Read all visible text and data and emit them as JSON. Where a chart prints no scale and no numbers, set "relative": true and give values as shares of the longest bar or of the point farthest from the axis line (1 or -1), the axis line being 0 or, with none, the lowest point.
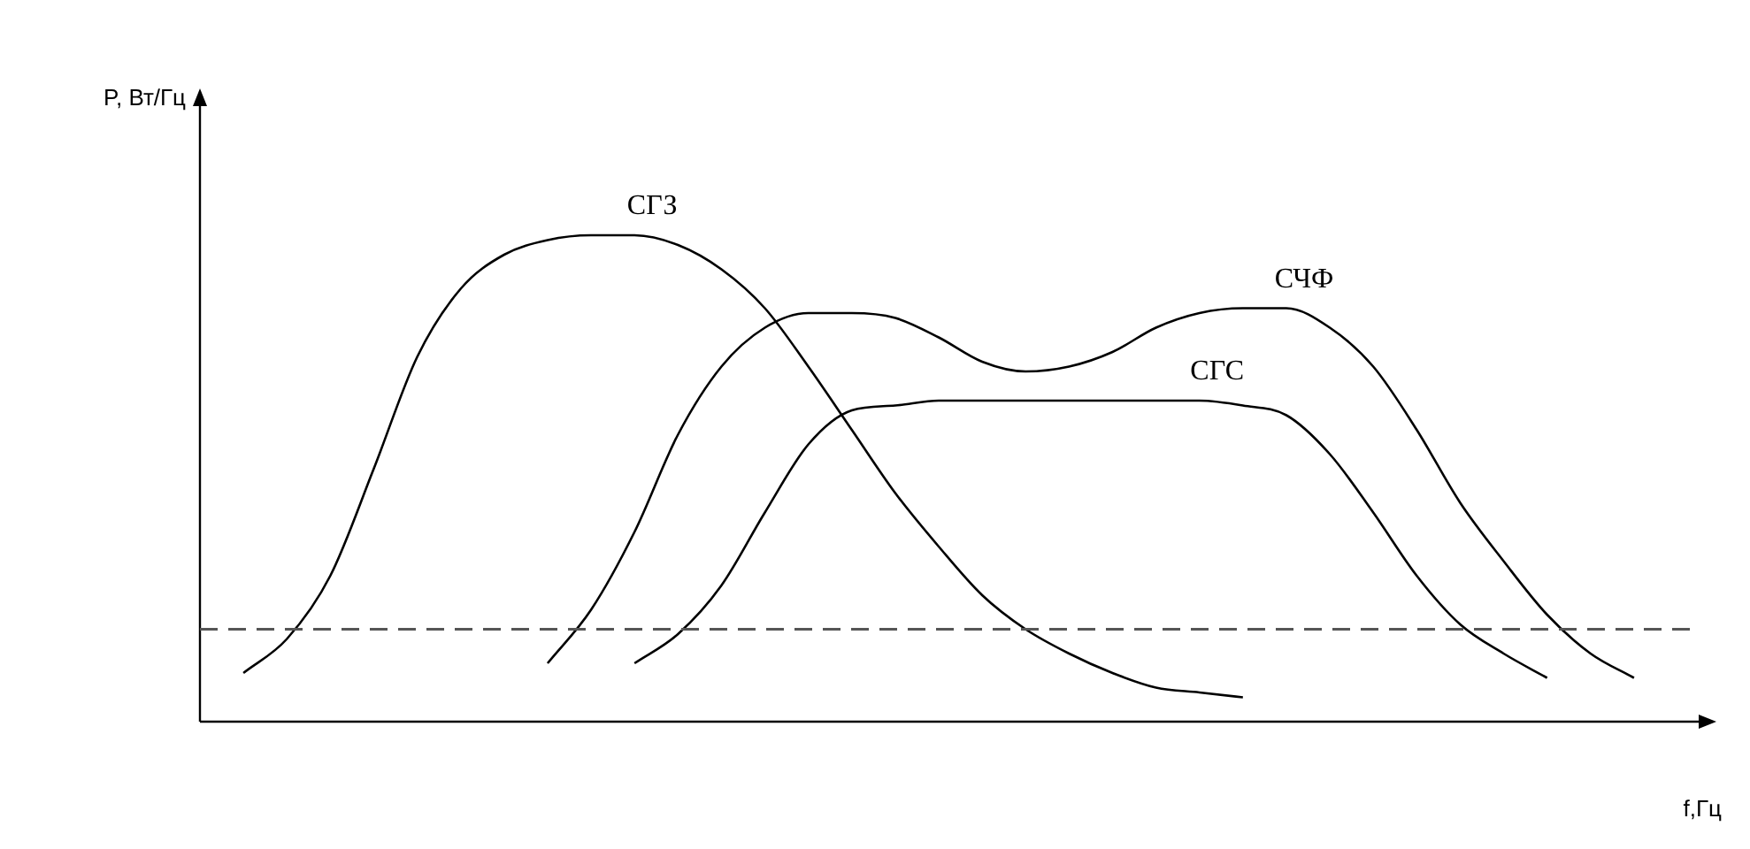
{
  "chart_data": {
    "type": "line",
    "relative": true,
    "xlabel": "f,Гц",
    "annotations": [
      "P, Вт/Гц"
    ],
    "marker": "none",
    "line_style": "solid",
    "categories": [
      null,
      null,
      null,
      null,
      null,
      null,
      null,
      null,
      null,
      null,
      null,
      null,
      null,
      null,
      null,
      null,
      null,
      null,
      null,
      null,
      null,
      null,
      null,
      null,
      null,
      null,
      null,
      null,
      null,
      null,
      null,
      null,
      null,
      null,
      null
    ],
    "series": [
      {
        "name": "СГЗ",
        "color": "#000000",
        "values": [
          null,
          0.1,
          0.17,
          0.3,
          0.52,
          0.75,
          0.89,
          0.96,
          0.99,
          1,
          1,
          0.98,
          0.93,
          0.85,
          0.73,
          0.6,
          0.47,
          0.36,
          0.26,
          0.19,
          0.14,
          0.1,
          0.07,
          0.06,
          0.05,
          null,
          null,
          null,
          null,
          null,
          null,
          null,
          null,
          null,
          null
        ]
      },
      {
        "name": "СЧФ",
        "color": "#000000",
        "values": [
          null,
          null,
          null,
          null,
          null,
          null,
          null,
          null,
          0.12,
          0.23,
          0.39,
          0.59,
          0.73,
          0.81,
          0.84,
          0.84,
          0.83,
          0.79,
          0.74,
          0.72,
          0.73,
          0.76,
          0.81,
          0.84,
          0.85,
          0.85,
          0.81,
          0.73,
          0.6,
          0.45,
          0.33,
          0.22,
          0.14,
          0.09,
          null
        ]
      },
      {
        "name": "СГС",
        "color": "#000000",
        "values": [
          null,
          null,
          null,
          null,
          null,
          null,
          null,
          null,
          null,
          null,
          0.12,
          0.18,
          0.28,
          0.43,
          0.57,
          0.64,
          0.65,
          0.66,
          0.66,
          0.66,
          0.66,
          0.66,
          0.66,
          0.66,
          0.65,
          0.63,
          0.55,
          0.43,
          0.3,
          0.2,
          0.14,
          0.09,
          null,
          null,
          null
        ]
      }
    ],
    "ref_lines": [
      {
        "axis": "y",
        "value": 0.19,
        "color": "#555555",
        "line_style": "dashed"
      }
    ]
  }
}
